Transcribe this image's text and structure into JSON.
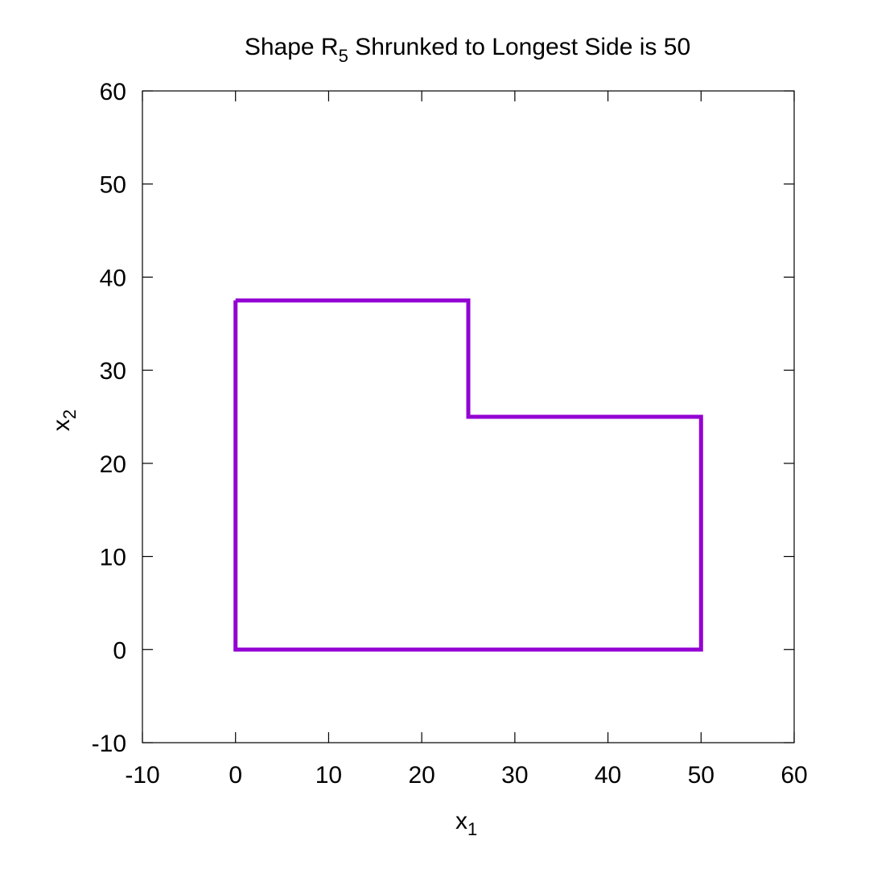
{
  "chart_data": {
    "type": "line",
    "title": {
      "prefix": "Shape R",
      "subscript": "5",
      "suffix": " Shrunked to Longest Side is 50"
    },
    "xlabel": {
      "base": "x",
      "subscript": "1"
    },
    "ylabel": {
      "base": "x",
      "subscript": "2"
    },
    "xlim": [
      -10,
      60
    ],
    "ylim": [
      -10,
      60
    ],
    "xticks": [
      -10,
      0,
      10,
      20,
      30,
      40,
      50,
      60
    ],
    "yticks": [
      -10,
      0,
      10,
      20,
      30,
      40,
      50,
      60
    ],
    "xtick_labels": [
      "-10",
      "0",
      "10",
      "20",
      "30",
      "40",
      "50",
      "60"
    ],
    "ytick_labels": [
      "-10",
      "0",
      "10",
      "20",
      "30",
      "40",
      "50",
      "60"
    ],
    "grid": false,
    "series": [
      {
        "color": "#9400d3",
        "x": [
          0,
          25,
          25,
          50,
          50,
          0,
          0
        ],
        "y": [
          37.5,
          37.5,
          25,
          25,
          0,
          0,
          37.5
        ]
      }
    ]
  }
}
